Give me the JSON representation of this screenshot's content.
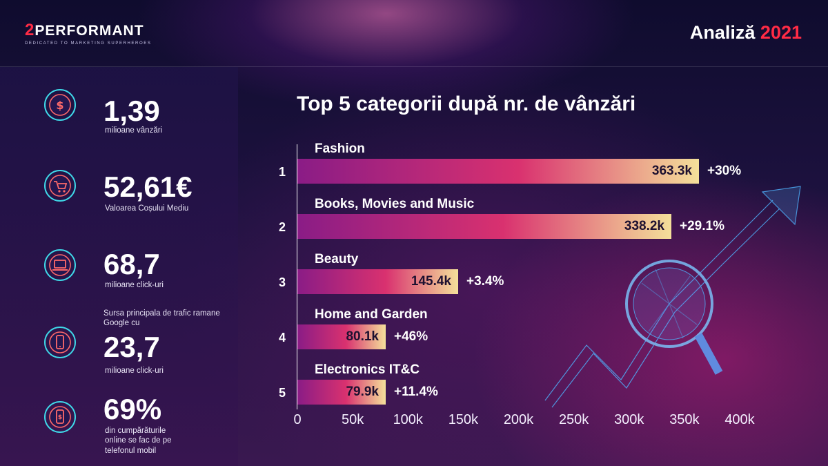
{
  "header": {
    "logo_number": "2",
    "logo_name": "PERFORMANT",
    "logo_tagline": "DEDICATED TO MARKETING SUPERHEROES",
    "title_word": "Analiză",
    "title_year": "2021"
  },
  "stats": [
    {
      "icon": "dollar-coin-icon",
      "value": "1,39",
      "pre_caption": "",
      "caption": "milioane vânzări"
    },
    {
      "icon": "shopping-cart-icon",
      "value": "52,61€",
      "pre_caption": "",
      "caption": "Valoarea Coșului Mediu"
    },
    {
      "icon": "laptop-icon",
      "value": "68,7",
      "pre_caption": "",
      "caption": "milioane click-uri"
    },
    {
      "icon": "mobile-phone-icon",
      "value": "23,7",
      "pre_caption": "Sursa principala de trafic ramane Google cu",
      "caption": "milioane click-uri"
    },
    {
      "icon": "mobile-payment-icon",
      "value": "69%",
      "pre_caption": "",
      "caption": "din cumpărăturile online se fac de pe telefonul mobil"
    }
  ],
  "chart_data": {
    "type": "bar",
    "orientation": "horizontal",
    "title": "Top 5 categorii după nr. de vânzări",
    "categories": [
      "Fashion",
      "Books, Movies and Music",
      "Beauty",
      "Home and Garden",
      "Electronics IT&C"
    ],
    "ranks": [
      "1",
      "2",
      "3",
      "4",
      "5"
    ],
    "values": [
      363300,
      338200,
      145400,
      80100,
      79900
    ],
    "value_labels": [
      "363.3k",
      "338.2k",
      "145.4k",
      "80.1k",
      "79.9k"
    ],
    "growth_labels": [
      "+30%",
      "+29.1%",
      "+3.4%",
      "+46%",
      "+11.4%"
    ],
    "xlim": [
      0,
      400000
    ],
    "x_ticks": [
      "0",
      "50k",
      "100k",
      "150k",
      "200k",
      "250k",
      "300k",
      "350k",
      "400k"
    ],
    "grid": false,
    "bar_gradient": [
      "#8a1c86",
      "#d9316f",
      "#f4e09a"
    ]
  },
  "colors": {
    "accent_red": "#ff2b45",
    "icon_ring": "#3fd8e8",
    "icon_glyph": "#ff6a6a"
  }
}
